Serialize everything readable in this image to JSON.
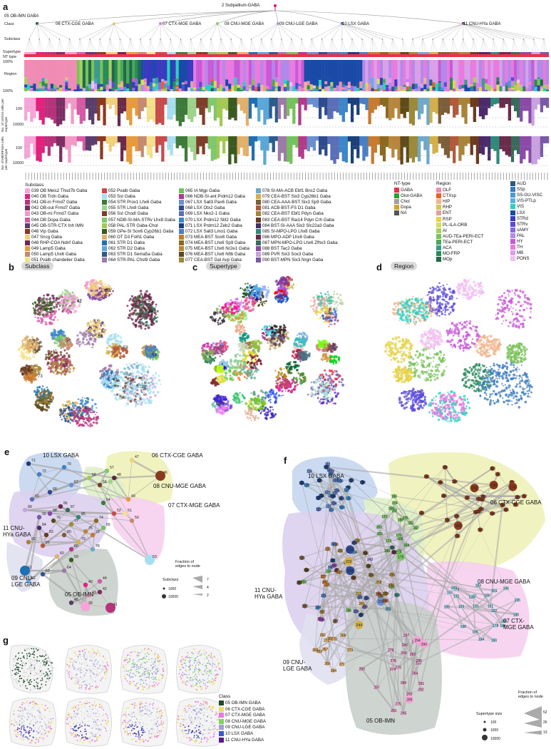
{
  "panel_letters": {
    "a": "a",
    "b": "b",
    "c": "c",
    "d": "d",
    "e": "e",
    "f": "f",
    "g": "g"
  },
  "panel_a": {
    "root_label": "2 Subpallium-GABA",
    "ob_label": "05 OB-IMN GABA",
    "class_row_label": "Class",
    "subclass_row_label": "Subclass",
    "supertype_row_label": "Supertype",
    "nttype_row_label": "NT type",
    "region_row_label": "Region",
    "pct_100_top": "100%",
    "pct_100_bottom": "100%",
    "cells10x_label": "No. of 10Xv3 cells per supertype",
    "cellsmerfish_label": "No. of MERFISH cells per supertype",
    "tick_100": "100",
    "tick_10000": "10000",
    "class_labels": [
      "06 CTX-CGE GABA",
      "07 CTX-MGE GABA",
      "08 CNU-MGE GABA",
      "09 CNU-LGE GABA",
      "10 LSX GABA",
      "11 CNU-HYa GABA"
    ],
    "subclass_legend_title": "Subclass",
    "subclass_legend": [
      {
        "label": "039 OB Meis2 Thsd7b Gaba",
        "color": "#f6a5d8"
      },
      {
        "label": "040 OB Trdn Gaba",
        "color": "#e3207e"
      },
      {
        "label": "041 OB-in Frmd7 Gaba",
        "color": "#b7327b"
      },
      {
        "label": "042 OB-out Frmd7 Gaba",
        "color": "#7a2e63"
      },
      {
        "label": "043 OB-mi Frmd7 Gaba",
        "color": "#f29ac6"
      },
      {
        "label": "044 OB Dopa-Gaba",
        "color": "#d55aa5"
      },
      {
        "label": "045 OB-STR-CTX Inh IMN",
        "color": "#5a3d6b"
      },
      {
        "label": "046 Vip Gaba",
        "color": "#8a3a1f"
      },
      {
        "label": "047 Sncg Gaba",
        "color": "#f0d07a"
      },
      {
        "label": "048 RHP-COA Ndnf Gaba",
        "color": "#6b2a4a"
      },
      {
        "label": "049 Lamp5 Gaba",
        "color": "#e89b3a"
      },
      {
        "label": "050 Lamp5 Lhx6 Gaba",
        "color": "#c58a6d"
      },
      {
        "label": "051 Pvalb chandelier Gaba",
        "color": "#f5e08b"
      },
      {
        "label": "052 Pvalb Gaba",
        "color": "#c94a4a"
      },
      {
        "label": "053 Sst Gaba",
        "color": "#a6dff0"
      },
      {
        "label": "054 STR Prox1 Lhx6 Gaba",
        "color": "#3e7b3a"
      },
      {
        "label": "055 STR Lhx8 Gaba",
        "color": "#9ed38a"
      },
      {
        "label": "056 Sst Chodl Gaba",
        "color": "#7d3f29"
      },
      {
        "label": "057 NDB-SI-MA-STRv Lhx8 Gaba",
        "color": "#7ec96a"
      },
      {
        "label": "058 PAL-STR Gaba-Chol",
        "color": "#a3c955"
      },
      {
        "label": "059 GPe-SI Sox6 Cyp26b1 Gaba",
        "color": "#3a5a1f"
      },
      {
        "label": "060 OT D3 Folh1 Gaba",
        "color": "#e3b06a"
      },
      {
        "label": "061 STR D1 Gaba",
        "color": "#1f6fb3"
      },
      {
        "label": "062 STR D2 Gaba",
        "color": "#5aa7d9"
      },
      {
        "label": "063 STR D1 Sema5a Gaba",
        "color": "#2a5b8a"
      },
      {
        "label": "064 STR-PAL Chst9 Gaba",
        "color": "#9e7aa8"
      },
      {
        "label": "065 IA Mgp Gaba",
        "color": "#73c25a"
      },
      {
        "label": "066 NDB-SI-ant Prdm12 Gaba",
        "color": "#b33a8a"
      },
      {
        "label": "067 LSX Sall3 Pax6 Gaba",
        "color": "#6a8fd0"
      },
      {
        "label": "068 LSX Otx2 Gaba",
        "color": "#2e4a8f"
      },
      {
        "label": "069 LSX Nkx2-1 Gaba",
        "color": "#5b6eb8"
      },
      {
        "label": "070 LSX Prdm12 Slit2 Gaba",
        "color": "#3b86c9"
      },
      {
        "label": "071 LSX Prdm12 Zeb2 Gaba",
        "color": "#1c3f7a"
      },
      {
        "label": "072 LSX Sall3 Lmo1 Gaba",
        "color": "#4a7fc2"
      },
      {
        "label": "073 MEA-BST Sox6 Gaba",
        "color": "#c77a2e"
      },
      {
        "label": "074 MEA-BST Lhx6 Sp9 Gaba",
        "color": "#8a6a1f"
      },
      {
        "label": "075 MEA-BST Lhx6 Nr2e1 Gaba",
        "color": "#b8863a"
      },
      {
        "label": "076 MEA-BST Lhx6 Nfib Gaba",
        "color": "#5e4a1a"
      },
      {
        "label": "077 CEA-BST Gal Avp Gaba",
        "color": "#9a8a3a"
      },
      {
        "label": "078 SI-MA-ACB Ebf1 Bnc2 Gaba",
        "color": "#6fa8c9"
      },
      {
        "label": "079 CEA-BST Six3 Cyp26b1 Gaba",
        "color": "#d2b04a"
      },
      {
        "label": "080 CEA-AAA-BST Six3 Sp9 Gaba",
        "color": "#7c5e3a"
      },
      {
        "label": "081 ACB-BST-FS D1 Gaba",
        "color": "#b05a3a"
      },
      {
        "label": "082 CEA-BST Ebf1 Pdyn Gaba",
        "color": "#a8843a"
      },
      {
        "label": "083 CEA-BST Rai14 Pdyn Crh Gaba",
        "color": "#6a3a1f"
      },
      {
        "label": "084 BST-SI-AAA Six3 Slc22a3 Gaba",
        "color": "#4a2a6a"
      },
      {
        "label": "085 SI-MPO-LPO Lhx8 Gaba",
        "color": "#2f8a7a"
      },
      {
        "label": "086 MPO-ADP Lhx8 Gaba",
        "color": "#6a2a4a"
      },
      {
        "label": "087 MPN-MPO-LPO Lhx6 Zfhx3 Gaba",
        "color": "#3a6a5a"
      },
      {
        "label": "088 BST Tac2 Gaba",
        "color": "#8a4aa8"
      },
      {
        "label": "089 PVR Six3 Sox3 Gaba",
        "color": "#c8a2e0"
      },
      {
        "label": "090 BST-MPN Six3 Nrgn Gaba",
        "color": "#7a5aa8"
      }
    ],
    "nt_legend_title": "NT-type",
    "nt_legend": [
      {
        "label": "GABA",
        "color": "#e8324a"
      },
      {
        "label": "Glut-GABA",
        "color": "#2ca02c"
      },
      {
        "label": "Chol",
        "color": "#a0a0a0"
      },
      {
        "label": "Dopa",
        "color": "#d4a42a"
      },
      {
        "label": "NA",
        "color": "#555555"
      }
    ],
    "region_legend_title": "Region",
    "region_legend_col1": [
      {
        "label": "OLF",
        "color": "#f08cb4"
      },
      {
        "label": "CTXsp",
        "color": "#e8602a"
      },
      {
        "label": "HIP",
        "color": "#f0b48c"
      },
      {
        "label": "RHP",
        "color": "#d9c25a"
      },
      {
        "label": "ENT",
        "color": "#e0a0a0"
      },
      {
        "label": "RSP",
        "color": "#e6d24a"
      },
      {
        "label": "PL-ILA-ORB",
        "color": "#d4e05a"
      },
      {
        "label": "AI",
        "color": "#a8d060"
      },
      {
        "label": "AUD-TEa-PERI-ECT",
        "color": "#7ac25a"
      },
      {
        "label": "TEa-PERI-ECT",
        "color": "#4aa85a"
      },
      {
        "label": "ACA",
        "color": "#3a9a8a"
      },
      {
        "label": "MO-FRP",
        "color": "#2a8a5a"
      },
      {
        "label": "MOp",
        "color": "#1f6a4a"
      }
    ],
    "region_legend_col2": [
      {
        "label": "AUD",
        "color": "#2a5a8a"
      },
      {
        "label": "SSp",
        "color": "#3a7ac0"
      },
      {
        "label": "SS-GU-VISC",
        "color": "#4a9ad8"
      },
      {
        "label": "VIS-PTLp",
        "color": "#5ab0e0"
      },
      {
        "label": "VIS",
        "color": "#2ad0c0"
      },
      {
        "label": "LSX",
        "color": "#1a4aa8"
      },
      {
        "label": "STRd",
        "color": "#3a3ac0"
      },
      {
        "label": "STRv",
        "color": "#5a4ad8"
      },
      {
        "label": "sAMY",
        "color": "#8a6ae0"
      },
      {
        "label": "PAL",
        "color": "#b08ae8"
      },
      {
        "label": "HY",
        "color": "#c85ad8"
      },
      {
        "label": "TH",
        "color": "#e87ae0"
      },
      {
        "label": "MB",
        "color": "#d8a0e8"
      },
      {
        "label": "PONS",
        "color": "#f0c0f0"
      }
    ]
  },
  "panel_b": {
    "title": "Subclass",
    "labels": [
      "47",
      "46",
      "50",
      "49",
      "52",
      "53",
      "41",
      "39",
      "40",
      "42",
      "55",
      "56",
      "58",
      "73",
      "61",
      "62",
      "64",
      "65"
    ]
  },
  "panel_c": {
    "title": "Supertype"
  },
  "panel_d": {
    "title": "Region"
  },
  "panel_e": {
    "groups": [
      "10 LSX GABA",
      "06 CTX-CGE GABA",
      "08 CNU-MGE GABA",
      "07 CTX-MGE GABA",
      "11 CNU-\nHYa GABA",
      "09 CNU-\nLGE GABA",
      "05 OB-IMN"
    ],
    "size_legend_title": "Subclass",
    "size_legend": [
      "1000",
      "10000"
    ],
    "edge_legend_title": "Fraction of\nedges to node",
    "edge_legend": [
      "7",
      "4",
      "2"
    ],
    "nodes": [
      {
        "id": "47",
        "color": "#f0d07a"
      },
      {
        "id": "46",
        "color": "#8a3a1f"
      },
      {
        "id": "48",
        "color": "#6b2a4a"
      },
      {
        "id": "49",
        "color": "#e89b3a"
      },
      {
        "id": "71",
        "color": "#1c3f7a"
      },
      {
        "id": "70",
        "color": "#3b86c9"
      },
      {
        "id": "72",
        "color": "#4a7fc2"
      },
      {
        "id": "67",
        "color": "#6a8fd0"
      },
      {
        "id": "68",
        "color": "#2e4a8f"
      },
      {
        "id": "69",
        "color": "#5b6eb8"
      },
      {
        "id": "57",
        "color": "#7ec96a"
      },
      {
        "id": "58",
        "color": "#a3c955"
      },
      {
        "id": "55",
        "color": "#9ed38a"
      },
      {
        "id": "56",
        "color": "#7d3f29"
      },
      {
        "id": "54",
        "color": "#3e7b3a"
      },
      {
        "id": "50",
        "color": "#c58a6d"
      },
      {
        "id": "52",
        "color": "#c94a4a"
      },
      {
        "id": "51",
        "color": "#f5e08b"
      },
      {
        "id": "53",
        "color": "#a6dff0"
      },
      {
        "id": "89",
        "color": "#c8a2e0"
      },
      {
        "id": "88",
        "color": "#8a4aa8"
      },
      {
        "id": "87",
        "color": "#3a6a5a"
      },
      {
        "id": "86",
        "color": "#6a2a4a"
      },
      {
        "id": "85",
        "color": "#2f8a7a"
      },
      {
        "id": "84",
        "color": "#4a2a6a"
      },
      {
        "id": "83",
        "color": "#6a3a1f"
      },
      {
        "id": "82",
        "color": "#a8843a"
      },
      {
        "id": "81",
        "color": "#b05a3a"
      },
      {
        "id": "80",
        "color": "#7c5e3a"
      },
      {
        "id": "79",
        "color": "#d2b04a"
      },
      {
        "id": "78",
        "color": "#6fa8c9"
      },
      {
        "id": "77",
        "color": "#9a8a3a"
      },
      {
        "id": "76",
        "color": "#5e4a1a"
      },
      {
        "id": "75",
        "color": "#b8863a"
      },
      {
        "id": "74",
        "color": "#8a6a1f"
      },
      {
        "id": "73",
        "color": "#c77a2e"
      },
      {
        "id": "90",
        "color": "#7a5aa8"
      },
      {
        "id": "66",
        "color": "#b33a8a"
      },
      {
        "id": "65",
        "color": "#73c25a"
      },
      {
        "id": "61",
        "color": "#1f6fb3"
      },
      {
        "id": "62",
        "color": "#5aa7d9"
      },
      {
        "id": "63",
        "color": "#2a5b8a"
      },
      {
        "id": "64",
        "color": "#9e7aa8"
      },
      {
        "id": "60",
        "color": "#e3b06a"
      },
      {
        "id": "59",
        "color": "#3a5a1f"
      },
      {
        "id": "39",
        "color": "#f6a5d8"
      },
      {
        "id": "40",
        "color": "#e3207e"
      },
      {
        "id": "41",
        "color": "#b7327b"
      },
      {
        "id": "42",
        "color": "#7a2e63"
      },
      {
        "id": "43",
        "color": "#f29ac6"
      },
      {
        "id": "44",
        "color": "#d55aa5"
      },
      {
        "id": "45",
        "color": "#5a3d6b"
      }
    ]
  },
  "panel_f": {
    "groups": [
      "10 LSX GABA",
      "06 CTX-CGE GABA",
      "08 CNU-MGE GABA",
      "07 CTX-\nMGE GABA",
      "11 CNU-\nHYa GABA",
      "09 CNU-\nLGE GABA",
      "05 OB-IMN"
    ],
    "size_legend_title": "Supertype size",
    "size_legend": [
      "100",
      "1000",
      "10000"
    ],
    "edge_legend_title": "Fraction of\nedges to node",
    "edge_legend": [
      "52",
      "26",
      "13"
    ]
  },
  "panel_g": {
    "legend_title": "Class",
    "legend": [
      {
        "label": "05 OB-IMN GABA",
        "color": "#1f4a2a"
      },
      {
        "label": "06 CTX-CGE GABA",
        "color": "#e6e05a"
      },
      {
        "label": "07 CTX-MGE GABA",
        "color": "#e87ae0"
      },
      {
        "label": "08 CNU-MGE GABA",
        "color": "#7ad85a"
      },
      {
        "label": "09 CNU-LGE GABA",
        "color": "#a0a0d8"
      },
      {
        "label": "10 LSX GABA",
        "color": "#3a5ac8"
      },
      {
        "label": "11 CNU-HYa GABA",
        "color": "#5a1a8a"
      }
    ]
  }
}
